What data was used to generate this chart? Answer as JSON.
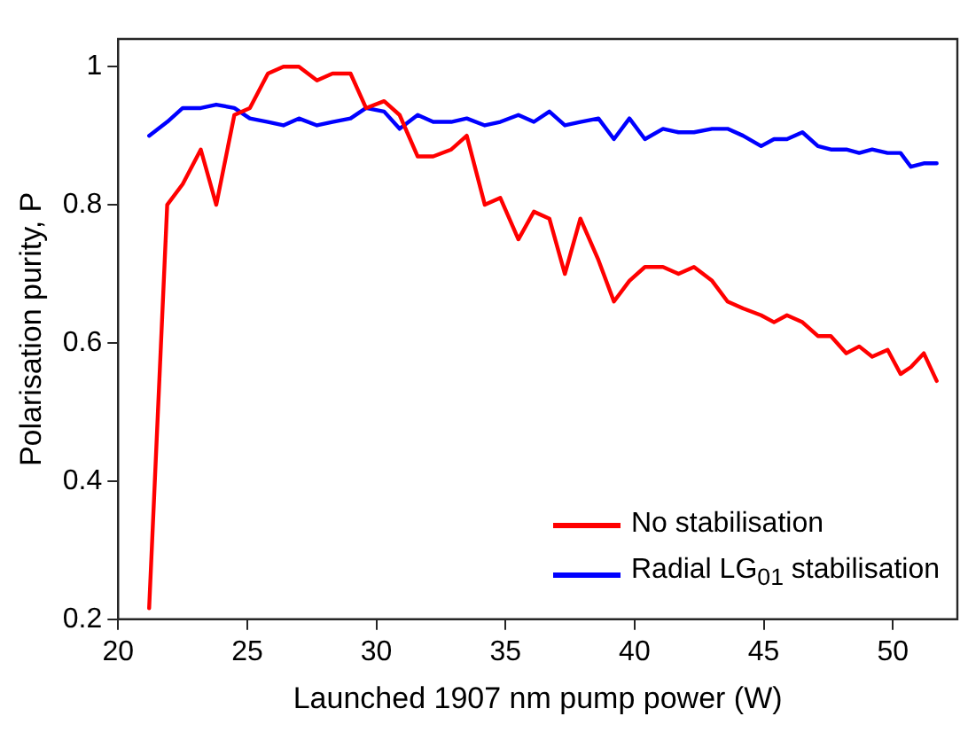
{
  "chart_data": {
    "type": "line",
    "xlabel": "Launched 1907 nm pump power (W)",
    "ylabel": "Polarisation purity, P",
    "x": [
      21.2,
      21.9,
      22.5,
      23.2,
      23.8,
      24.5,
      25.1,
      25.8,
      26.4,
      27.0,
      27.7,
      28.3,
      29.0,
      29.6,
      30.3,
      30.9,
      31.6,
      32.2,
      32.9,
      33.5,
      34.2,
      34.8,
      35.5,
      36.1,
      36.7,
      37.3,
      37.9,
      38.6,
      39.2,
      39.8,
      40.4,
      41.1,
      41.7,
      42.3,
      43.0,
      43.6,
      44.2,
      44.9,
      45.4,
      45.9,
      46.5,
      47.1,
      47.6,
      48.2,
      48.7,
      49.2,
      49.8,
      50.3,
      50.7,
      51.2,
      51.7
    ],
    "series": [
      {
        "name": "No stabilisation",
        "color": "#ff0000",
        "values": [
          0.216,
          0.8,
          0.83,
          0.88,
          0.8,
          0.93,
          0.94,
          0.99,
          1.0,
          1.0,
          0.98,
          0.99,
          0.99,
          0.94,
          0.95,
          0.93,
          0.87,
          0.87,
          0.88,
          0.9,
          0.8,
          0.81,
          0.75,
          0.79,
          0.78,
          0.7,
          0.78,
          0.72,
          0.66,
          0.69,
          0.71,
          0.71,
          0.7,
          0.71,
          0.69,
          0.66,
          0.65,
          0.64,
          0.63,
          0.64,
          0.63,
          0.61,
          0.61,
          0.585,
          0.595,
          0.58,
          0.59,
          0.555,
          0.565,
          0.585,
          0.545
        ]
      },
      {
        "name": "Radial LG$_{01}$ stabilisation",
        "color": "#0000ff",
        "values": [
          0.9,
          0.92,
          0.94,
          0.94,
          0.945,
          0.94,
          0.925,
          0.92,
          0.915,
          0.925,
          0.915,
          0.92,
          0.925,
          0.94,
          0.935,
          0.91,
          0.93,
          0.92,
          0.92,
          0.925,
          0.915,
          0.92,
          0.93,
          0.92,
          0.935,
          0.915,
          0.92,
          0.925,
          0.895,
          0.925,
          0.895,
          0.91,
          0.905,
          0.905,
          0.91,
          0.91,
          0.9,
          0.885,
          0.895,
          0.895,
          0.905,
          0.885,
          0.88,
          0.88,
          0.875,
          0.88,
          0.875,
          0.875,
          0.855,
          0.86,
          0.86
        ]
      }
    ],
    "xlim": [
      20,
      52.5
    ],
    "xticks": [
      20,
      25,
      30,
      35,
      40,
      45,
      50
    ],
    "ylim": [
      0.2,
      1.04
    ],
    "yticks": [
      0.2,
      0.4,
      0.6,
      0.8,
      1
    ],
    "grid": false,
    "legend": "bottom right",
    "marker": "none",
    "line_style": "solid"
  }
}
